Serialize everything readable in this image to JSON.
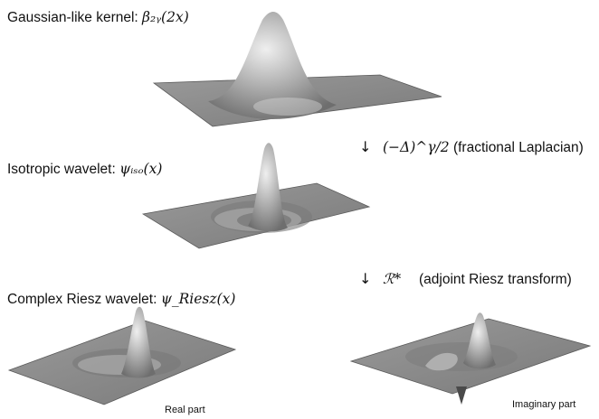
{
  "labels": {
    "gaussian_text": "Gaussian-like kernel: ",
    "gaussian_math": "β₂ᵧ(2x)",
    "isotropic_text": "Isotropic wavelet: ",
    "isotropic_math": "ψᵢₛₒ(x)",
    "riesz_text": "Complex Riesz wavelet: ",
    "riesz_math": "ψ_Riesz(x)"
  },
  "steps": {
    "first": {
      "arrow": "↓",
      "operator": "(−Δ)^γ/2",
      "description": "(fractional Laplacian)"
    },
    "second": {
      "arrow": "↓",
      "operator": "ℛ*",
      "description": "(adjoint Riesz transform)"
    }
  },
  "captions": {
    "real": "Real part",
    "imaginary": "Imaginary part"
  },
  "colors": {
    "plane": "#8a8a8a",
    "plane_edge": "#555555",
    "surface_light": "#dcdcdc",
    "surface_dark": "#6f6f6f"
  }
}
